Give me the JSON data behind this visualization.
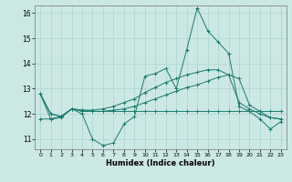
{
  "title": "",
  "xlabel": "Humidex (Indice chaleur)",
  "bg_color": "#cce8e4",
  "line_color": "#1a7a6e",
  "grid_color": "#aad4ce",
  "xlim": [
    -0.5,
    23.5
  ],
  "ylim": [
    10.6,
    16.3
  ],
  "yticks": [
    11,
    12,
    13,
    14,
    15,
    16
  ],
  "xticks": [
    0,
    1,
    2,
    3,
    4,
    5,
    6,
    7,
    8,
    9,
    10,
    11,
    12,
    13,
    14,
    15,
    16,
    17,
    18,
    19,
    20,
    21,
    22,
    23
  ],
  "series": [
    [
      12.8,
      11.8,
      11.9,
      12.2,
      12.0,
      11.0,
      10.75,
      10.85,
      11.6,
      11.9,
      13.5,
      13.6,
      13.8,
      13.0,
      14.55,
      16.2,
      15.3,
      14.85,
      14.4,
      12.3,
      12.1,
      11.8,
      11.4,
      11.7
    ],
    [
      11.8,
      11.8,
      11.85,
      12.2,
      12.1,
      12.1,
      12.1,
      12.1,
      12.1,
      12.1,
      12.1,
      12.1,
      12.1,
      12.1,
      12.1,
      12.1,
      12.1,
      12.1,
      12.1,
      12.1,
      12.1,
      12.1,
      12.1,
      12.1
    ],
    [
      12.8,
      12.0,
      11.9,
      12.2,
      12.15,
      12.1,
      12.1,
      12.15,
      12.2,
      12.3,
      12.45,
      12.6,
      12.75,
      12.9,
      13.05,
      13.15,
      13.3,
      13.45,
      13.55,
      13.4,
      12.35,
      12.1,
      11.85,
      11.8
    ],
    [
      12.8,
      12.0,
      11.9,
      12.2,
      12.15,
      12.15,
      12.2,
      12.3,
      12.45,
      12.6,
      12.85,
      13.05,
      13.25,
      13.4,
      13.55,
      13.65,
      13.75,
      13.75,
      13.55,
      12.45,
      12.2,
      12.0,
      11.85,
      11.8
    ]
  ]
}
